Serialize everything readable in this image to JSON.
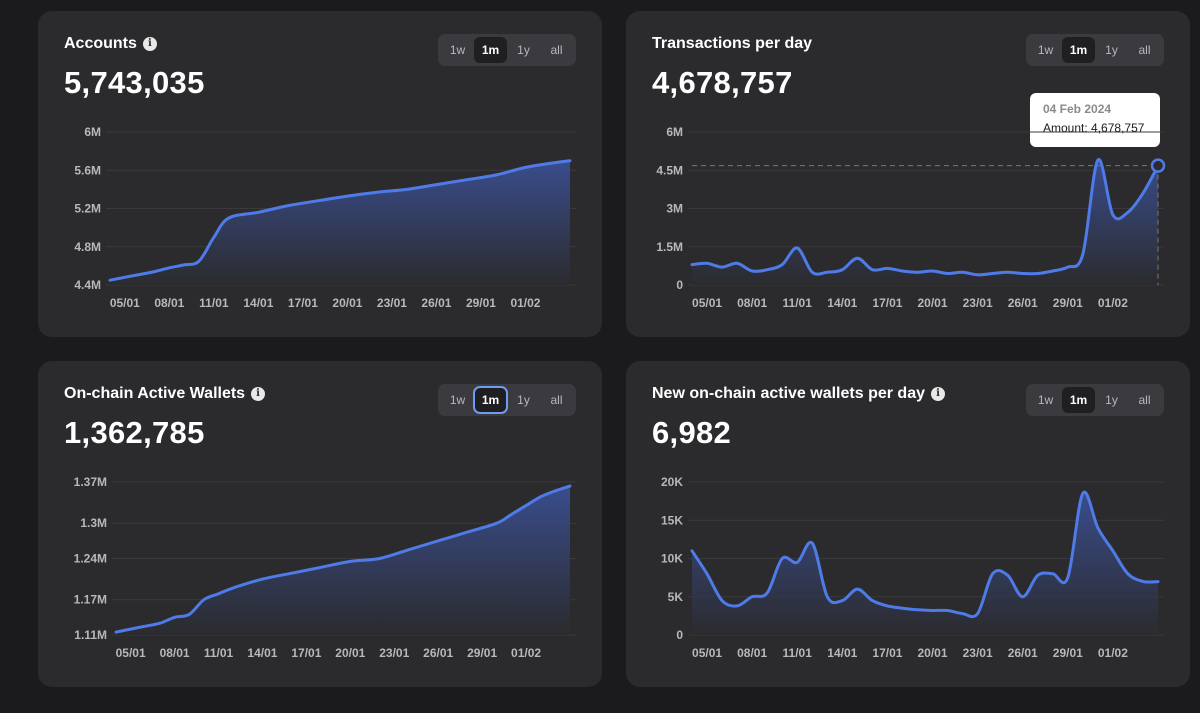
{
  "cards": [
    {
      "id": "accounts",
      "title": "Accounts",
      "has_info": true,
      "value": "5,743,035",
      "ranges": [
        "1w",
        "1m",
        "1y",
        "all"
      ],
      "selected_range": "1m",
      "focused_range": ""
    },
    {
      "id": "tx",
      "title": "Transactions per day",
      "has_info": false,
      "value": "4,678,757",
      "ranges": [
        "1w",
        "1m",
        "1y",
        "all"
      ],
      "selected_range": "1m",
      "focused_range": "",
      "tooltip": {
        "date": "04 Feb 2024",
        "amount_label": "Amount:",
        "amount": "4,678,757"
      }
    },
    {
      "id": "wallets",
      "title": "On-chain Active Wallets",
      "has_info": true,
      "value": "1,362,785",
      "ranges": [
        "1w",
        "1m",
        "1y",
        "all"
      ],
      "selected_range": "1m",
      "focused_range": "1m"
    },
    {
      "id": "newwal",
      "title": "New on-chain active wallets per day",
      "has_info": true,
      "value": "6,982",
      "ranges": [
        "1w",
        "1m",
        "1y",
        "all"
      ],
      "selected_range": "1m",
      "focused_range": ""
    }
  ],
  "colors": {
    "line": "#4f7be8",
    "fill_top": "#3a4f92",
    "fill_bottom": "#2b2b2e",
    "grid": "#3a3a3e"
  },
  "chart_data": [
    {
      "type": "area",
      "title": "Accounts",
      "categories": [
        "05/01",
        "08/01",
        "11/01",
        "14/01",
        "17/01",
        "20/01",
        "23/01",
        "26/01",
        "29/01",
        "01/02"
      ],
      "ylim": [
        4.4,
        6.0
      ],
      "yticks": [
        4.4,
        4.8,
        5.2,
        5.6,
        6.0
      ],
      "ytick_labels": [
        "4.4M",
        "4.8M",
        "5.2M",
        "5.6M",
        "6M"
      ],
      "unit": "millions",
      "grid": true,
      "series": [
        {
          "x": [
            4,
            5,
            6,
            7,
            8,
            9,
            10,
            11,
            12,
            14,
            16,
            18,
            20,
            22,
            24,
            26,
            28,
            30,
            32,
            34,
            35
          ],
          "values": [
            4.45,
            4.48,
            4.51,
            4.54,
            4.58,
            4.61,
            4.65,
            4.9,
            5.1,
            5.16,
            5.23,
            5.28,
            5.33,
            5.37,
            5.4,
            5.45,
            5.5,
            5.55,
            5.63,
            5.68,
            5.7
          ]
        }
      ]
    },
    {
      "type": "area",
      "title": "Transactions per day",
      "categories": [
        "05/01",
        "08/01",
        "11/01",
        "14/01",
        "17/01",
        "20/01",
        "23/01",
        "26/01",
        "29/01",
        "01/02"
      ],
      "ylim": [
        0,
        6.0
      ],
      "yticks": [
        0,
        1.5,
        3,
        4.5,
        6
      ],
      "ytick_labels": [
        "0",
        "1.5M",
        "3M",
        "4.5M",
        "6M"
      ],
      "unit": "millions",
      "grid": true,
      "series": [
        {
          "x": [
            4,
            5,
            6,
            7,
            8,
            9,
            10,
            11,
            12,
            13,
            14,
            15,
            16,
            17,
            18,
            19,
            20,
            21,
            22,
            23,
            24,
            25,
            26,
            27,
            28,
            29,
            30,
            31,
            32,
            33,
            34,
            35
          ],
          "values": [
            0.8,
            0.85,
            0.7,
            0.85,
            0.55,
            0.6,
            0.8,
            1.45,
            0.5,
            0.5,
            0.6,
            1.05,
            0.6,
            0.65,
            0.55,
            0.5,
            0.55,
            0.45,
            0.5,
            0.4,
            0.45,
            0.5,
            0.45,
            0.45,
            0.55,
            0.7,
            1.2,
            4.9,
            2.75,
            2.85,
            3.6,
            4.68
          ]
        }
      ]
    },
    {
      "type": "area",
      "title": "On-chain Active Wallets",
      "categories": [
        "05/01",
        "08/01",
        "11/01",
        "14/01",
        "17/01",
        "20/01",
        "23/01",
        "26/01",
        "29/01",
        "01/02"
      ],
      "ylim": [
        1.11,
        1.37
      ],
      "yticks": [
        1.11,
        1.17,
        1.24,
        1.3,
        1.37
      ],
      "ytick_labels": [
        "1.11M",
        "1.17M",
        "1.24M",
        "1.3M",
        "1.37M"
      ],
      "unit": "millions",
      "grid": true,
      "series": [
        {
          "x": [
            4,
            5,
            6,
            7,
            8,
            9,
            10,
            11,
            12,
            14,
            16,
            18,
            20,
            22,
            24,
            26,
            28,
            30,
            31,
            32,
            33,
            34,
            35
          ],
          "values": [
            1.115,
            1.12,
            1.125,
            1.13,
            1.14,
            1.145,
            1.17,
            1.18,
            1.19,
            1.205,
            1.215,
            1.225,
            1.235,
            1.24,
            1.255,
            1.27,
            1.285,
            1.3,
            1.315,
            1.33,
            1.345,
            1.355,
            1.363
          ]
        }
      ]
    },
    {
      "type": "area",
      "title": "New on-chain active wallets per day",
      "categories": [
        "05/01",
        "08/01",
        "11/01",
        "14/01",
        "17/01",
        "20/01",
        "23/01",
        "26/01",
        "29/01",
        "01/02"
      ],
      "ylim": [
        0,
        20
      ],
      "yticks": [
        0,
        5,
        10,
        15,
        20
      ],
      "ytick_labels": [
        "0",
        "5K",
        "10K",
        "15K",
        "20K"
      ],
      "unit": "thousands",
      "grid": true,
      "series": [
        {
          "x": [
            4,
            5,
            6,
            7,
            8,
            9,
            10,
            11,
            12,
            13,
            14,
            15,
            16,
            17,
            18,
            19,
            20,
            21,
            22,
            23,
            24,
            25,
            26,
            27,
            28,
            29,
            30,
            31,
            32,
            33,
            34,
            35
          ],
          "values": [
            11,
            8,
            4.5,
            3.8,
            5,
            5.5,
            10,
            9.5,
            12,
            5,
            4.5,
            6,
            4.5,
            3.8,
            3.5,
            3.3,
            3.2,
            3.2,
            2.8,
            2.8,
            8,
            7.8,
            5,
            7.8,
            8,
            7.5,
            18.5,
            14,
            11,
            8,
            7,
            6.98
          ]
        }
      ]
    }
  ]
}
